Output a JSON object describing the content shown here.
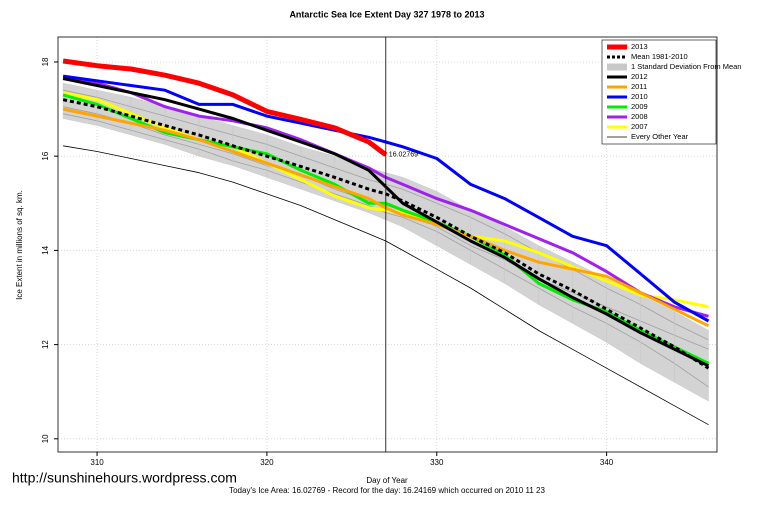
{
  "chart_data": {
    "type": "line",
    "title": "Antarctic Sea Ice Extent Day 327 1978 to 2013",
    "x_label": "Day of Year",
    "y_label": "Ice Extent in millions of sq. km.",
    "footer": "Today's Ice Area: 16.02769  - Record for the day: 16.24169 which occurred on 2010 11 23",
    "watermark": "http://sunshinehours.wordpress.com",
    "annotation": {
      "text": "16.02769",
      "x": 327,
      "y": 16.02769,
      "color": "#ff0000"
    },
    "marker_x": 327,
    "grid": true,
    "legend": "top-right",
    "x": [
      308,
      310,
      312,
      314,
      316,
      318,
      320,
      322,
      324,
      326,
      327,
      328,
      330,
      332,
      334,
      336,
      338,
      340,
      342,
      344,
      346
    ],
    "xlim": [
      307.7,
      346.5
    ],
    "xticks": [
      310,
      320,
      330,
      340
    ],
    "ylim": [
      9.72,
      18.53
    ],
    "yticks": [
      10,
      12,
      14,
      16,
      18
    ],
    "series": [
      {
        "name": "2013",
        "color": "#ff0000",
        "linewidth": 5,
        "values": [
          18.02,
          17.92,
          17.85,
          17.72,
          17.55,
          17.3,
          16.95,
          16.78,
          16.6,
          16.3,
          16.03,
          null,
          null,
          null,
          null,
          null,
          null,
          null,
          null,
          null,
          null
        ]
      },
      {
        "name": "Mean 1981-2010",
        "color": "#000000",
        "linewidth": 3,
        "dash": true,
        "values": [
          17.2,
          17.05,
          16.85,
          16.65,
          16.45,
          16.22,
          16.0,
          15.78,
          15.55,
          15.3,
          15.2,
          15.05,
          14.7,
          14.3,
          13.95,
          13.5,
          13.15,
          12.75,
          12.35,
          11.95,
          11.5
        ]
      },
      {
        "name": "1 Standard Deviation From Mean",
        "color": "#c8c8c8",
        "kind": "band",
        "lower": [
          16.8,
          16.65,
          16.45,
          16.25,
          16.0,
          15.8,
          15.55,
          15.3,
          15.05,
          14.8,
          14.65,
          14.5,
          14.1,
          13.7,
          13.3,
          12.85,
          12.45,
          12.05,
          11.6,
          11.2,
          10.8
        ],
        "upper": [
          17.55,
          17.4,
          17.25,
          17.05,
          16.85,
          16.65,
          16.45,
          16.2,
          16.0,
          15.75,
          15.65,
          15.55,
          15.25,
          14.85,
          14.5,
          14.1,
          13.75,
          13.4,
          13.05,
          12.7,
          12.3
        ]
      },
      {
        "name": "2012",
        "color": "#000000",
        "linewidth": 3,
        "values": [
          17.65,
          17.5,
          17.35,
          17.2,
          17.0,
          16.8,
          16.55,
          16.3,
          16.05,
          15.7,
          15.35,
          15.0,
          14.6,
          14.2,
          13.85,
          13.4,
          13.0,
          12.65,
          12.25,
          11.9,
          11.55
        ]
      },
      {
        "name": "2011",
        "color": "#ffa500",
        "linewidth": 3,
        "values": [
          17.0,
          16.85,
          16.7,
          16.55,
          16.35,
          16.1,
          15.85,
          15.6,
          15.35,
          15.1,
          14.9,
          14.75,
          14.55,
          14.3,
          14.0,
          13.75,
          13.6,
          13.45,
          13.1,
          12.75,
          12.4
        ]
      },
      {
        "name": "2010",
        "color": "#0000ff",
        "linewidth": 3,
        "values": [
          17.7,
          17.6,
          17.5,
          17.4,
          17.1,
          17.1,
          16.85,
          16.7,
          16.55,
          16.4,
          16.3,
          16.2,
          15.95,
          15.4,
          15.1,
          14.7,
          14.3,
          14.1,
          13.5,
          12.9,
          12.5
        ]
      },
      {
        "name": "2009",
        "color": "#00ee00",
        "linewidth": 3,
        "values": [
          17.3,
          17.1,
          16.8,
          16.5,
          16.35,
          16.2,
          16.05,
          15.7,
          15.4,
          15.0,
          15.0,
          14.85,
          14.6,
          14.3,
          13.9,
          13.3,
          12.95,
          12.7,
          12.3,
          11.95,
          11.6
        ]
      },
      {
        "name": "2008",
        "color": "#a020f0",
        "linewidth": 3,
        "values": [
          17.65,
          17.55,
          17.35,
          17.05,
          16.85,
          16.75,
          16.6,
          16.35,
          16.05,
          15.75,
          15.55,
          15.4,
          15.1,
          14.85,
          14.55,
          14.25,
          13.95,
          13.55,
          13.1,
          12.8,
          12.6
        ]
      },
      {
        "name": "2007",
        "color": "#ffff00",
        "linewidth": 3,
        "values": [
          17.35,
          17.2,
          16.9,
          16.6,
          16.35,
          16.2,
          15.85,
          15.5,
          15.15,
          14.9,
          14.85,
          14.8,
          14.55,
          14.3,
          14.2,
          13.95,
          13.65,
          13.35,
          13.05,
          12.95,
          12.8
        ]
      },
      {
        "name": "Every Other Year",
        "color": "#000000",
        "linewidth": 0.8,
        "kind": "lines",
        "lines": [
          [
            16.22,
            16.1,
            15.95,
            15.8,
            15.65,
            15.45,
            15.2,
            14.95,
            14.65,
            14.35,
            14.2,
            14.0,
            13.6,
            13.2,
            12.75,
            12.3,
            11.9,
            11.5,
            11.1,
            10.7,
            10.3
          ],
          [
            16.9,
            16.75,
            16.55,
            16.35,
            16.15,
            15.9,
            15.7,
            15.45,
            15.2,
            14.95,
            14.8,
            14.7,
            14.4,
            14.0,
            13.6,
            13.2,
            12.8,
            12.45,
            12.05,
            11.6,
            11.1
          ],
          [
            17.4,
            17.25,
            17.05,
            16.85,
            16.65,
            16.45,
            16.25,
            16.0,
            15.75,
            15.5,
            15.4,
            15.3,
            15.0,
            14.7,
            14.35,
            13.95,
            13.6,
            13.2,
            12.85,
            12.45,
            12.1
          ],
          [
            17.05,
            16.9,
            16.7,
            16.45,
            16.25,
            16.05,
            15.8,
            15.6,
            15.3,
            15.05,
            14.95,
            14.85,
            14.5,
            14.1,
            13.8,
            13.4,
            13.1,
            12.8,
            12.5,
            12.2,
            11.9
          ]
        ]
      }
    ]
  }
}
